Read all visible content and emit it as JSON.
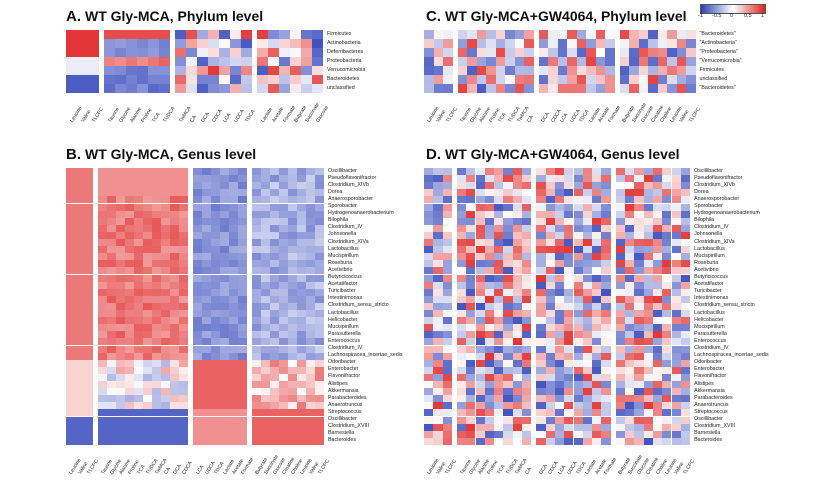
{
  "panels": {
    "a": {
      "letter": "A.",
      "title": "WT Gly-MCA, Phylum level"
    },
    "b": {
      "letter": "B.",
      "title": "WT Gly-MCA, Genus level"
    },
    "c": {
      "letter": "C.",
      "title": "WT Gly-MCA+GW4064, Phylum level"
    },
    "d": {
      "letter": "D.",
      "title": "WT Gly-MCA+GW4064, Genus level"
    }
  },
  "colors": {
    "low": "#2b3fb8",
    "mid": "#ffffff",
    "high": "#e02020"
  },
  "legend": {
    "ticks": [
      "-1",
      "-0.5",
      "0",
      "0.5",
      "1"
    ]
  },
  "phylum_labels": [
    "Firmicutes",
    "Actinobacteria",
    "Deferribacteres",
    "Proteobacteria",
    "Verrucomicrobia",
    "Bacteroidetes",
    "unclassified"
  ],
  "phylum_labels_c": [
    "\"Bacteroidetes\"",
    "\"Actinobacteria\"",
    "\"Proteobacteria\"",
    "\"Verrucomicrobia\"",
    "Firmicutes",
    "unclassified",
    "\"Bacteroidetes\""
  ],
  "genus_labels": [
    "Oscillibacter",
    "Pseudoflavonifractor",
    "Clostridium_XIVb",
    "Dorea",
    "Anaerosporobacter",
    "Sporobacter",
    "Hydrogenoanaerobacterium",
    "Bilophila",
    "Clostridium_IV",
    "Johnsonella",
    "Clostridium_XIVa",
    "Lactobacillus",
    "Mucispirillum",
    "Roseburia",
    "Acetivibrio",
    "Butyricicoccus",
    "Acetatifactor",
    "Turicibacter",
    "Intestinimonas",
    "Clostridium_sensu_stricto",
    "Lactobacillus",
    "Helicobacter",
    "Mucispirillum",
    "Parasutterella",
    "Enterococcus",
    "Clostridium_IV",
    "Lachnospiracea_incertae_sedis",
    "Odoribacter",
    "Enterobacter",
    "Flavonifractor",
    "Alistipes",
    "Akkermansia",
    "Parabacteroides",
    "Anaerotruncus",
    "Streptococcus",
    "Oscillibacter",
    "Clostridium_XVIII",
    "Barnesiella",
    "Bacteroides"
  ],
  "col_labels_phylum": [
    "Leucine",
    "Valine",
    "TLCPC",
    "Taurine",
    "Glycine",
    "Alanine",
    "Proline",
    "TCA",
    "TUDCA",
    "TwMCA",
    "CA",
    "DCA",
    "CDCA",
    "LCA",
    "UDCA",
    "TDCA",
    "Lactate",
    "Acetate",
    "Formate",
    "Butyrate",
    "Succinate",
    "Glucose",
    "Creatine",
    "Choline"
  ],
  "col_labels_genus": [
    "Leucine",
    "Valine",
    "TLCPC",
    "Taurine",
    "Glycine",
    "Alanine",
    "Proline",
    "TCA",
    "TUDCA",
    "TwMCA",
    "CA",
    "DCA",
    "CDCA",
    "LCA",
    "UDCA",
    "TDCA",
    "Lactate",
    "Acetate",
    "Formate",
    "Butyrate",
    "Succinate",
    "Glucose",
    "Creatine",
    "Choline"
  ]
}
